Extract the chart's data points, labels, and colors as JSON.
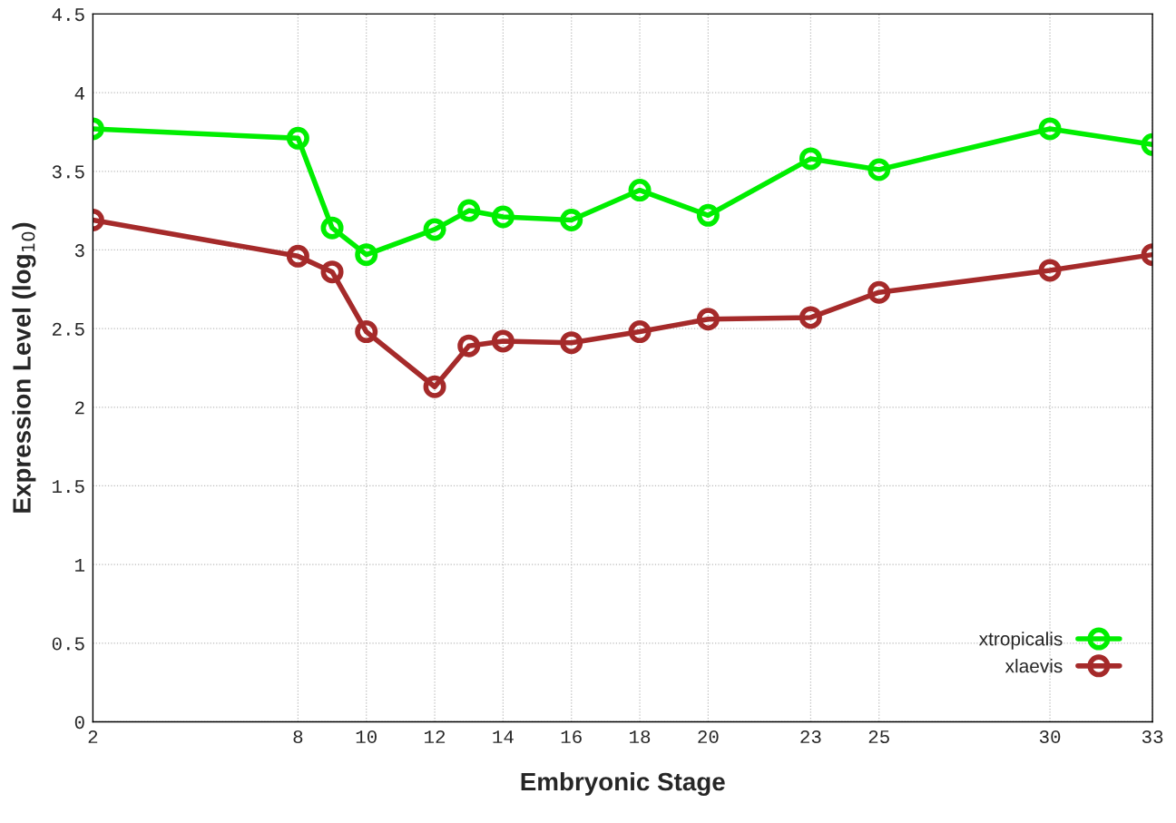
{
  "chart_data": {
    "type": "line",
    "xlabel": "Embryonic Stage",
    "ylabel": "Expression Level (log$_{10}$)",
    "x": [
      2,
      8,
      9,
      10,
      12,
      13,
      14,
      16,
      18,
      20,
      23,
      25,
      30,
      33
    ],
    "series": [
      {
        "name": "xtropicalis",
        "color": "#00ee00",
        "values": [
          3.77,
          3.71,
          3.14,
          2.97,
          3.13,
          3.25,
          3.21,
          3.19,
          3.38,
          3.22,
          3.58,
          3.51,
          3.77,
          3.67
        ]
      },
      {
        "name": "xlaevis",
        "color": "#a52a2a",
        "values": [
          3.19,
          2.96,
          2.86,
          2.48,
          2.13,
          2.39,
          2.42,
          2.41,
          2.48,
          2.56,
          2.57,
          2.73,
          2.87,
          2.97
        ]
      }
    ],
    "xlim": [
      2,
      33
    ],
    "xticks": [
      2,
      8,
      10,
      12,
      14,
      16,
      18,
      20,
      23,
      25,
      30,
      33
    ],
    "ylim": [
      0,
      4.5
    ],
    "yticks": [
      0,
      0.5,
      1,
      1.5,
      2,
      2.5,
      3,
      3.5,
      4,
      4.5
    ],
    "grid": true,
    "legend": "bottom right",
    "marker": "circle",
    "line_style": "solid"
  }
}
